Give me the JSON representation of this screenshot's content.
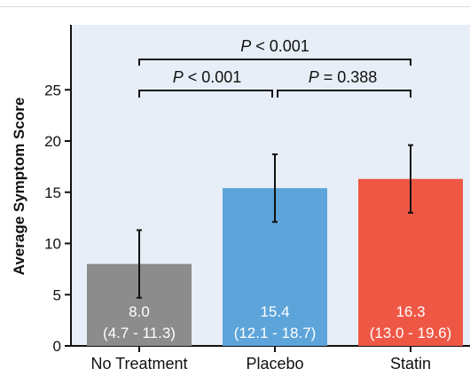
{
  "chart_data": {
    "type": "bar",
    "ylabel": "Average Symptom Score",
    "ylim": [
      0,
      30
    ],
    "yticks": [
      0,
      5,
      10,
      15,
      20,
      25
    ],
    "categories": [
      "No Treatment",
      "Placebo",
      "Statin"
    ],
    "values": [
      8.0,
      15.4,
      16.3
    ],
    "ci_low": [
      4.7,
      12.1,
      13.0
    ],
    "ci_high": [
      11.3,
      18.7,
      19.6
    ],
    "value_labels": [
      "8.0",
      "15.4",
      "16.3"
    ],
    "ci_labels": [
      "(4.7 - 11.3)",
      "(12.1 - 18.7)",
      "(13.0 - 19.6)"
    ],
    "colors": [
      "#8c8c8c",
      "#5da4da",
      "#ef5745"
    ],
    "background": "#e7eef7",
    "comparisons": [
      {
        "from": 0,
        "to": 2,
        "p_symbol": "P",
        "p_text": " < 0.001"
      },
      {
        "from": 0,
        "to": 1,
        "p_symbol": "P",
        "p_text": " < 0.001"
      },
      {
        "from": 1,
        "to": 2,
        "p_symbol": "P",
        "p_text": " = 0.388"
      }
    ]
  }
}
